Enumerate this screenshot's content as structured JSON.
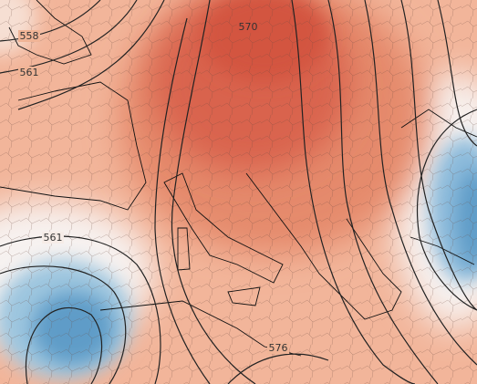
{
  "map": {
    "contour_labels": [
      "558",
      "570",
      "561",
      "561",
      "576"
    ]
  }
}
